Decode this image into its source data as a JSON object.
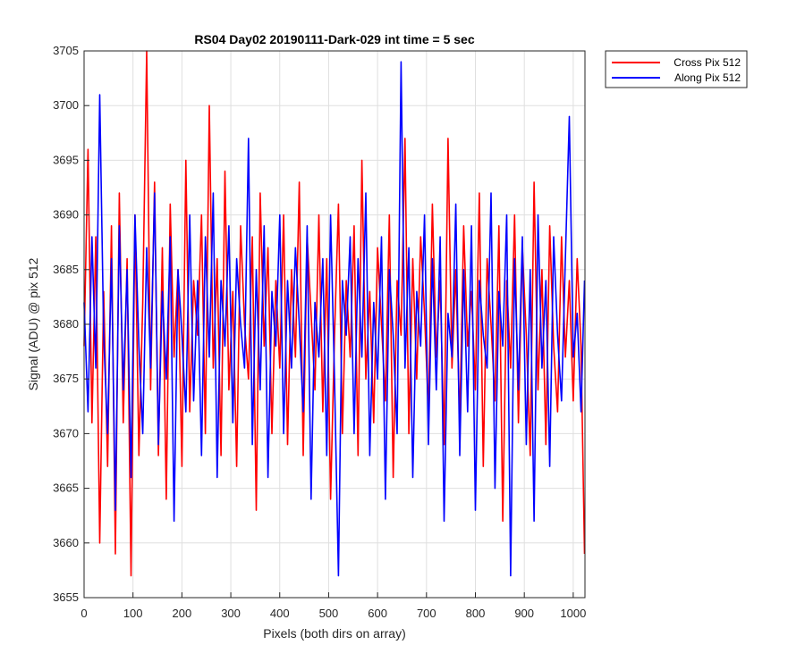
{
  "chart_data": {
    "type": "line",
    "title": "RS04 Day02 20190111-Dark-029 int time = 5 sec",
    "xlabel": "Pixels (both dirs on array)",
    "ylabel": "Signal (ADU) @ pix 512",
    "xlim": [
      0,
      1024
    ],
    "ylim": [
      3655,
      3705
    ],
    "xticks": [
      0,
      100,
      200,
      300,
      400,
      500,
      600,
      700,
      800,
      900,
      1000
    ],
    "yticks": [
      3655,
      3660,
      3665,
      3670,
      3675,
      3680,
      3685,
      3690,
      3695,
      3700,
      3705
    ],
    "grid": true,
    "legend_position": "outside-top-right",
    "series": [
      {
        "name": "Cross Pix 512",
        "color": "#ff0000",
        "x": [
          0,
          8,
          16,
          24,
          32,
          40,
          48,
          56,
          64,
          72,
          80,
          88,
          96,
          104,
          112,
          120,
          128,
          136,
          144,
          152,
          160,
          168,
          176,
          184,
          192,
          200,
          208,
          216,
          224,
          232,
          240,
          248,
          256,
          264,
          272,
          280,
          288,
          296,
          304,
          312,
          320,
          328,
          336,
          344,
          352,
          360,
          368,
          376,
          384,
          392,
          400,
          408,
          416,
          424,
          432,
          440,
          448,
          456,
          464,
          472,
          480,
          488,
          496,
          504,
          512,
          520,
          528,
          536,
          544,
          552,
          560,
          568,
          576,
          584,
          592,
          600,
          608,
          616,
          624,
          632,
          640,
          648,
          656,
          664,
          672,
          680,
          688,
          696,
          704,
          712,
          720,
          728,
          736,
          744,
          752,
          760,
          768,
          776,
          784,
          792,
          800,
          808,
          816,
          824,
          832,
          840,
          848,
          856,
          864,
          872,
          880,
          888,
          896,
          904,
          912,
          920,
          928,
          936,
          944,
          952,
          960,
          968,
          976,
          984,
          992,
          1000,
          1008,
          1016,
          1023
        ],
        "y": [
          3678,
          3696,
          3671,
          3688,
          3660,
          3683,
          3667,
          3689,
          3659,
          3692,
          3671,
          3686,
          3657,
          3690,
          3668,
          3682,
          3705,
          3674,
          3693,
          3668,
          3687,
          3664,
          3691,
          3677,
          3685,
          3667,
          3695,
          3672,
          3684,
          3679,
          3690,
          3670,
          3700,
          3676,
          3686,
          3668,
          3694,
          3674,
          3683,
          3667,
          3689,
          3680,
          3675,
          3688,
          3663,
          3692,
          3678,
          3687,
          3670,
          3684,
          3676,
          3690,
          3669,
          3685,
          3677,
          3693,
          3668,
          3688,
          3681,
          3674,
          3690,
          3672,
          3686,
          3664,
          3679,
          3691,
          3670,
          3684,
          3677,
          3689,
          3668,
          3695,
          3675,
          3683,
          3671,
          3687,
          3680,
          3673,
          3690,
          3666,
          3684,
          3679,
          3697,
          3670,
          3686,
          3675,
          3688,
          3681,
          3672,
          3691,
          3677,
          3684,
          3669,
          3697,
          3676,
          3685,
          3671,
          3689,
          3678,
          3683,
          3674,
          3692,
          3667,
          3686,
          3680,
          3673,
          3689,
          3662,
          3684,
          3676,
          3690,
          3671,
          3687,
          3679,
          3668,
          3693,
          3674,
          3685,
          3669,
          3689,
          3678,
          3672,
          3688,
          3677,
          3684,
          3673,
          3686,
          3678,
          3659
        ]
      },
      {
        "name": "Along Pix 512",
        "color": "#0000ff",
        "x": [
          0,
          8,
          16,
          24,
          32,
          40,
          48,
          56,
          64,
          72,
          80,
          88,
          96,
          104,
          112,
          120,
          128,
          136,
          144,
          152,
          160,
          168,
          176,
          184,
          192,
          200,
          208,
          216,
          224,
          232,
          240,
          248,
          256,
          264,
          272,
          280,
          288,
          296,
          304,
          312,
          320,
          328,
          336,
          344,
          352,
          360,
          368,
          376,
          384,
          392,
          400,
          408,
          416,
          424,
          432,
          440,
          448,
          456,
          464,
          472,
          480,
          488,
          496,
          504,
          512,
          520,
          528,
          536,
          544,
          552,
          560,
          568,
          576,
          584,
          592,
          600,
          608,
          616,
          624,
          632,
          640,
          648,
          656,
          664,
          672,
          680,
          688,
          696,
          704,
          712,
          720,
          728,
          736,
          744,
          752,
          760,
          768,
          776,
          784,
          792,
          800,
          808,
          816,
          824,
          832,
          840,
          848,
          856,
          864,
          872,
          880,
          888,
          896,
          904,
          912,
          920,
          928,
          936,
          944,
          952,
          960,
          968,
          976,
          984,
          992,
          1000,
          1008,
          1016,
          1023
        ],
        "y": [
          3682,
          3672,
          3688,
          3676,
          3701,
          3679,
          3670,
          3686,
          3663,
          3689,
          3674,
          3685,
          3666,
          3690,
          3678,
          3670,
          3687,
          3676,
          3692,
          3669,
          3683,
          3675,
          3688,
          3662,
          3685,
          3679,
          3672,
          3690,
          3673,
          3684,
          3668,
          3688,
          3677,
          3692,
          3666,
          3684,
          3678,
          3689,
          3671,
          3686,
          3680,
          3676,
          3697,
          3669,
          3685,
          3674,
          3689,
          3666,
          3683,
          3678,
          3690,
          3670,
          3684,
          3676,
          3687,
          3680,
          3672,
          3689,
          3664,
          3682,
          3677,
          3686,
          3668,
          3690,
          3675,
          3657,
          3684,
          3679,
          3688,
          3670,
          3686,
          3677,
          3692,
          3668,
          3682,
          3675,
          3688,
          3664,
          3685,
          3679,
          3670,
          3704,
          3676,
          3687,
          3666,
          3683,
          3678,
          3690,
          3669,
          3686,
          3674,
          3688,
          3662,
          3681,
          3677,
          3691,
          3668,
          3685,
          3672,
          3689,
          3663,
          3684,
          3679,
          3676,
          3692,
          3665,
          3683,
          3678,
          3690,
          3657,
          3686,
          3674,
          3688,
          3669,
          3685,
          3662,
          3690,
          3676,
          3684,
          3667,
          3688,
          3679,
          3673,
          3686,
          3699,
          3677,
          3681,
          3672,
          3684
        ]
      }
    ]
  }
}
